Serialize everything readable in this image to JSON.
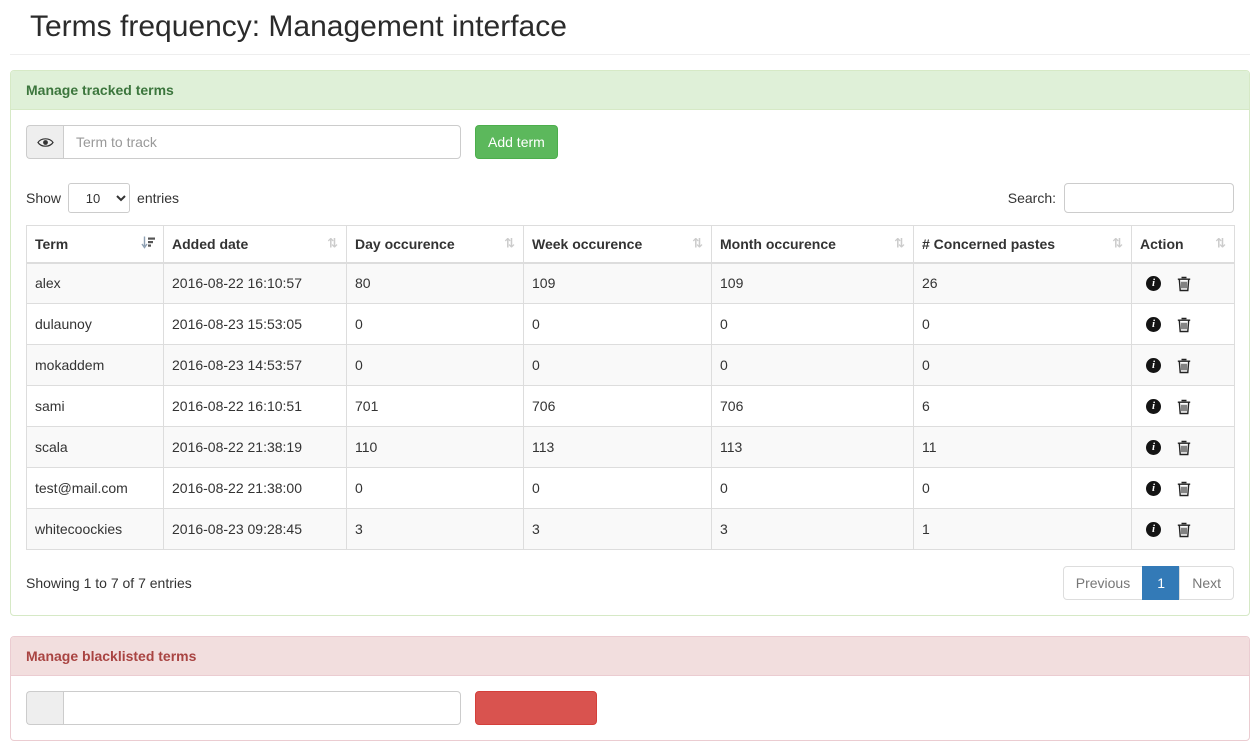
{
  "page": {
    "title": "Terms frequency: Management interface"
  },
  "colors": {
    "success_heading_bg": "#dff0d8",
    "success_heading_text": "#3c763d",
    "success_border": "#d6e9c6",
    "add_button_bg": "#5cb85c",
    "danger_heading_bg": "#f2dede",
    "danger_heading_text": "#a94442",
    "danger_border": "#ebccd1",
    "blacklist_button_bg": "#d9534f",
    "pagination_active_bg": "#337ab7",
    "row_stripe_bg": "#f9f9f9",
    "table_border": "#dddddd"
  },
  "icons": {
    "term_input_addon": "eye-icon",
    "sorted_column": "sort-asc-icon",
    "unsorted_column": "sort-both-icon",
    "row_info": "info-circle-icon",
    "row_delete": "trash-icon"
  },
  "tracked_panel": {
    "heading": "Manage tracked terms",
    "term_input": {
      "placeholder": "Term to track",
      "value": ""
    },
    "add_button_label": "Add term",
    "length_control": {
      "show_label": "Show",
      "selected": "10",
      "entries_label": "entries"
    },
    "search": {
      "label": "Search:",
      "value": ""
    },
    "table": {
      "columns": [
        {
          "label": "Term",
          "sort": "asc"
        },
        {
          "label": "Added date",
          "sort": "none"
        },
        {
          "label": "Day occurence",
          "sort": "none"
        },
        {
          "label": "Week occurence",
          "sort": "none"
        },
        {
          "label": "Month occurence",
          "sort": "none"
        },
        {
          "label": "# Concerned pastes",
          "sort": "none"
        },
        {
          "label": "Action",
          "sort": "none"
        }
      ],
      "rows": [
        {
          "term": "alex",
          "added_date": "2016-08-22 16:10:57",
          "day": "80",
          "week": "109",
          "month": "109",
          "pastes": "26"
        },
        {
          "term": "dulaunoy",
          "added_date": "2016-08-23 15:53:05",
          "day": "0",
          "week": "0",
          "month": "0",
          "pastes": "0"
        },
        {
          "term": "mokaddem",
          "added_date": "2016-08-23 14:53:57",
          "day": "0",
          "week": "0",
          "month": "0",
          "pastes": "0"
        },
        {
          "term": "sami",
          "added_date": "2016-08-22 16:10:51",
          "day": "701",
          "week": "706",
          "month": "706",
          "pastes": "6"
        },
        {
          "term": "scala",
          "added_date": "2016-08-22 21:38:19",
          "day": "110",
          "week": "113",
          "month": "113",
          "pastes": "11"
        },
        {
          "term": "test@mail.com",
          "added_date": "2016-08-22 21:38:00",
          "day": "0",
          "week": "0",
          "month": "0",
          "pastes": "0"
        },
        {
          "term": "whitecoockies",
          "added_date": "2016-08-23 09:28:45",
          "day": "3",
          "week": "3",
          "month": "3",
          "pastes": "1"
        }
      ]
    },
    "info_text": "Showing 1 to 7 of 7 entries",
    "pagination": {
      "previous_label": "Previous",
      "current_page": "1",
      "next_label": "Next"
    }
  },
  "blacklist_panel": {
    "heading": "Manage blacklisted terms",
    "term_input": {
      "placeholder": "",
      "value": ""
    },
    "button_label": ""
  }
}
